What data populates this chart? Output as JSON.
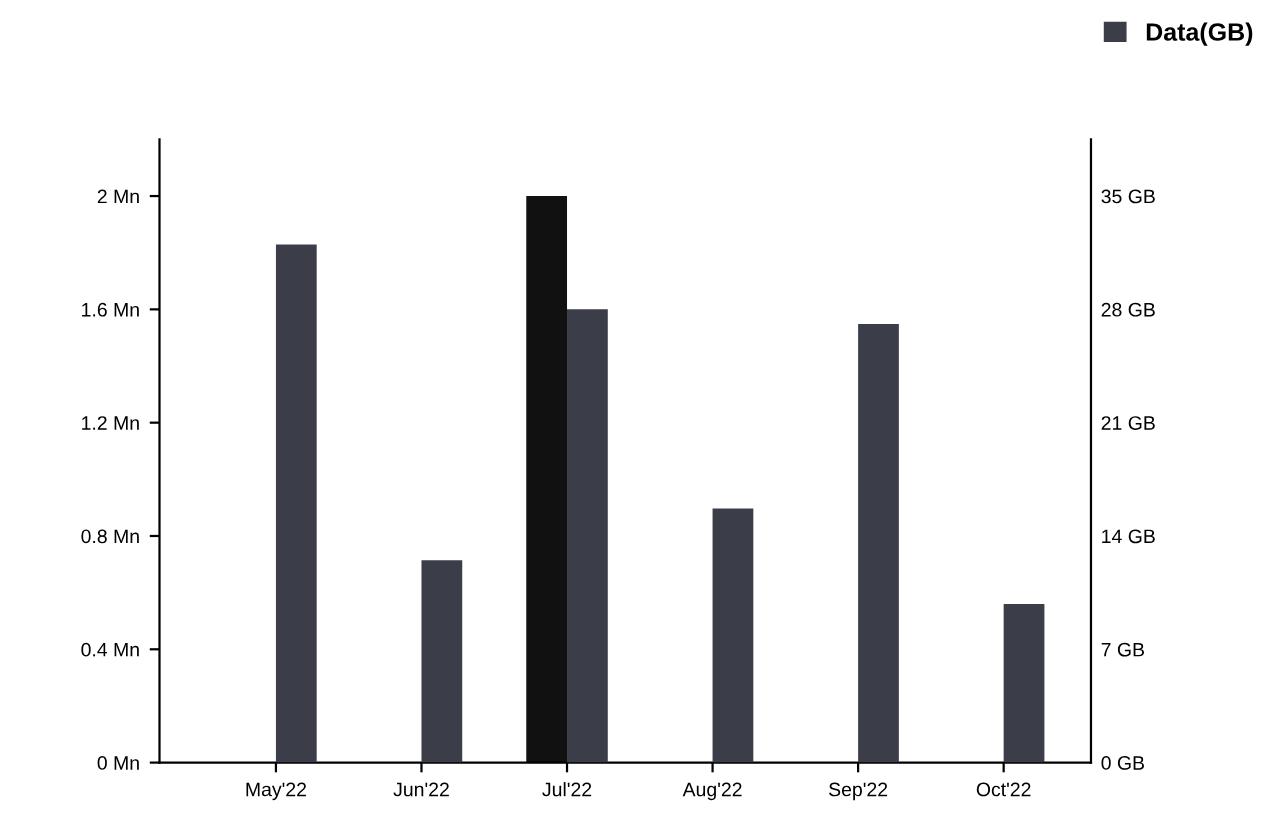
{
  "chart_data": {
    "type": "bar",
    "categories": [
      "May'22",
      "Jun'22",
      "Jul'22",
      "Aug'22",
      "Sep'22",
      "Oct'22"
    ],
    "series": [
      {
        "color": "#111111",
        "values": [
          null,
          null,
          2.0,
          null,
          null,
          null
        ]
      },
      {
        "name": "Data(GB)",
        "color": "#3b3e48",
        "axis": "y2",
        "values": [
          32,
          12.5,
          28,
          15.7,
          27.1,
          9.8
        ]
      }
    ],
    "ylim": [
      0,
      2.2
    ],
    "yticks": [
      {
        "value": 0,
        "label": "0 Mn"
      },
      {
        "value": 0.4,
        "label": "0.4 Mn"
      },
      {
        "value": 0.8,
        "label": "0.8 Mn"
      },
      {
        "value": 1.2,
        "label": "1.2 Mn"
      },
      {
        "value": 1.6,
        "label": "1.6 Mn"
      },
      {
        "value": 2,
        "label": "2 Mn"
      }
    ],
    "y2lim": [
      0,
      38.5
    ],
    "y2ticks": [
      {
        "value": 0,
        "label": "0 GB"
      },
      {
        "value": 7,
        "label": "7 GB"
      },
      {
        "value": 14,
        "label": "14 GB"
      },
      {
        "value": 21,
        "label": "21 GB"
      },
      {
        "value": 28,
        "label": "28 GB"
      },
      {
        "value": 35,
        "label": "35 GB"
      }
    ],
    "grid": false,
    "legend": "top right"
  }
}
